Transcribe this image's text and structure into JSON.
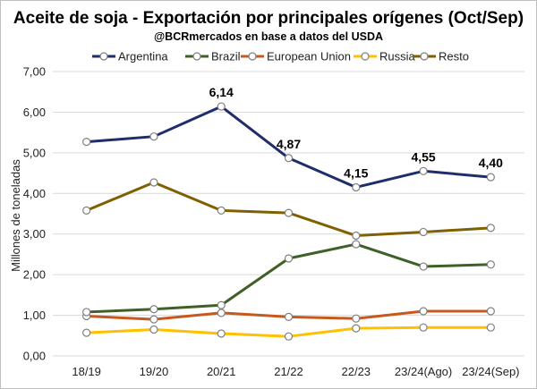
{
  "chart_data": {
    "type": "line",
    "title": "Aceite de soja - Exportación por principales orígenes (Oct/Sep)",
    "subtitle": "@BCRmercados en base a datos del USDA",
    "xlabel": "",
    "ylabel": "Millones de toneladas",
    "ylim": [
      0,
      7
    ],
    "ytick_labels": [
      "0,00",
      "1,00",
      "2,00",
      "3,00",
      "4,00",
      "5,00",
      "6,00",
      "7,00"
    ],
    "categories": [
      "18/19",
      "19/20",
      "20/21",
      "21/22",
      "22/23",
      "23/24(Ago)",
      "23/24(Sep)"
    ],
    "grid": true,
    "legend_position": "top",
    "series": [
      {
        "name": "Argentina",
        "color": "#1f2d6b",
        "values": [
          5.27,
          5.4,
          6.14,
          4.87,
          4.15,
          4.55,
          4.4
        ],
        "data_labels": [
          "",
          "",
          "6,14",
          "4,87",
          "4,15",
          "4,55",
          "4,40"
        ]
      },
      {
        "name": "Brazil",
        "color": "#3f6128",
        "values": [
          1.08,
          1.15,
          1.25,
          2.4,
          2.75,
          2.2,
          2.25
        ],
        "data_labels": []
      },
      {
        "name": "European Union",
        "color": "#c65a1e",
        "values": [
          0.98,
          0.9,
          1.06,
          0.96,
          0.92,
          1.1,
          1.1
        ],
        "data_labels": []
      },
      {
        "name": "Russia",
        "color": "#ffc000",
        "values": [
          0.57,
          0.65,
          0.55,
          0.48,
          0.68,
          0.7,
          0.7
        ],
        "data_labels": []
      },
      {
        "name": "Resto",
        "color": "#806000",
        "values": [
          3.58,
          4.27,
          3.58,
          3.52,
          2.96,
          3.05,
          3.15
        ],
        "data_labels": []
      }
    ]
  }
}
